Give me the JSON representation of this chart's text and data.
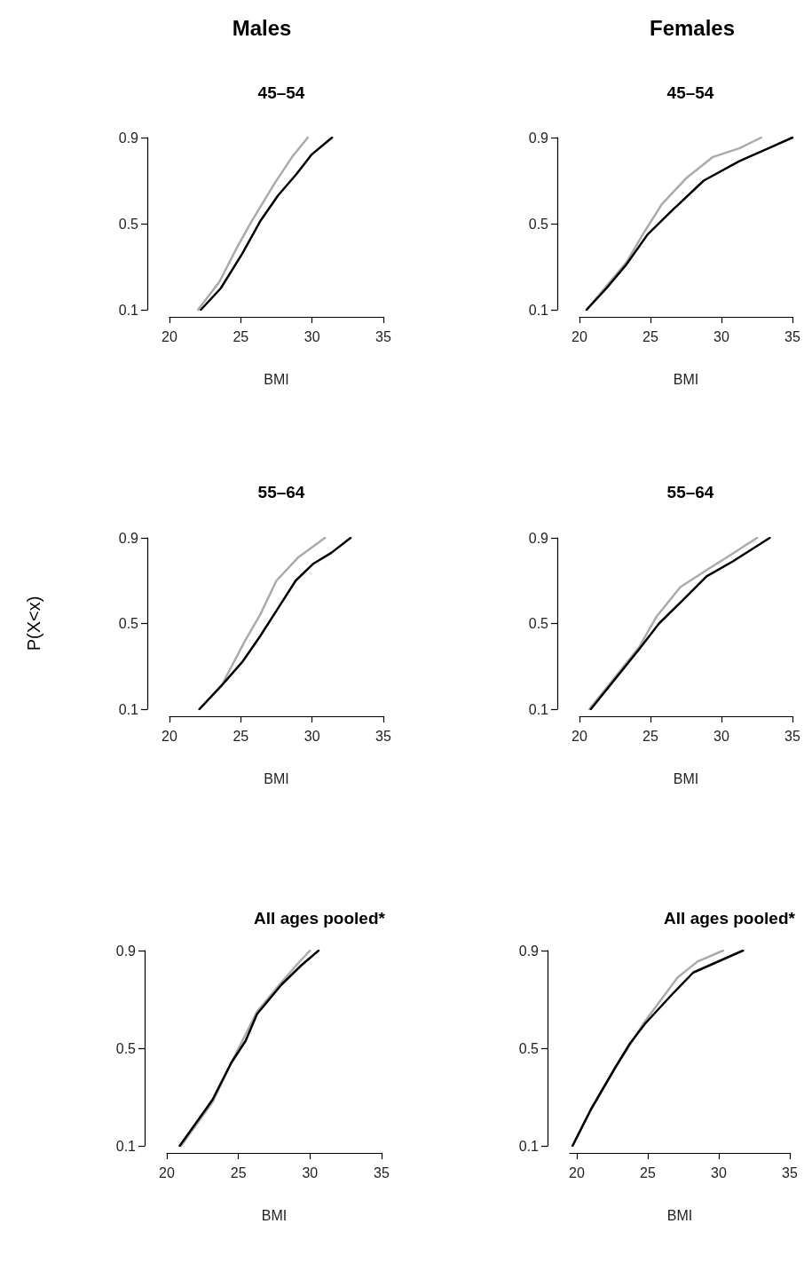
{
  "chart_data": [
    {
      "type": "line",
      "title": "45–54",
      "annotations": [
        "Males"
      ],
      "xlabel": "BMI",
      "xlim": [
        20,
        35
      ],
      "xticks": [
        20,
        25,
        30,
        35
      ],
      "ylim": [
        0.1,
        0.9
      ],
      "yticks": [
        0.1,
        0.5,
        0.9
      ],
      "series": [
        {
          "color": "#aaaaaa",
          "x": [
            22.0,
            23.5,
            24.7,
            25.75,
            27.4,
            28.6,
            29.7
          ],
          "values": [
            0.1,
            0.23,
            0.385,
            0.51,
            0.69,
            0.81,
            0.9
          ]
        },
        {
          "color": "#000000",
          "x": [
            22.2,
            23.6,
            25.1,
            26.35,
            27.6,
            28.9,
            29.95,
            31.4
          ],
          "values": [
            0.1,
            0.2,
            0.36,
            0.51,
            0.63,
            0.73,
            0.82,
            0.9
          ]
        }
      ]
    },
    {
      "type": "line",
      "title": "45–54",
      "annotations": [
        "Females"
      ],
      "xlabel": "BMI",
      "xlim": [
        20,
        35
      ],
      "xticks": [
        20,
        25,
        30,
        35
      ],
      "ylim": [
        0.1,
        0.9
      ],
      "yticks": [
        0.1,
        0.5,
        0.9
      ],
      "series": [
        {
          "color": "#aaaaaa",
          "x": [
            20.5,
            23.3,
            24.6,
            25.8,
            27.5,
            29.4,
            31.25,
            32.8
          ],
          "values": [
            0.1,
            0.32,
            0.465,
            0.59,
            0.71,
            0.81,
            0.85,
            0.9
          ]
        },
        {
          "color": "#000000",
          "x": [
            20.5,
            21.9,
            23.3,
            24.8,
            26.5,
            28.75,
            31.25,
            33.3,
            35.0
          ],
          "values": [
            0.1,
            0.2,
            0.31,
            0.45,
            0.56,
            0.7,
            0.79,
            0.85,
            0.9
          ]
        }
      ]
    },
    {
      "type": "line",
      "title": "55–64",
      "ylabel": "P(X<x)",
      "xlabel": "BMI",
      "xlim": [
        20,
        35
      ],
      "xticks": [
        20,
        25,
        30,
        35
      ],
      "ylim": [
        0.1,
        0.9
      ],
      "yticks": [
        0.1,
        0.5,
        0.9
      ],
      "series": [
        {
          "color": "#aaaaaa",
          "x": [
            22.1,
            23.65,
            25.3,
            26.35,
            27.5,
            29.05,
            30.9
          ],
          "values": [
            0.1,
            0.21,
            0.42,
            0.54,
            0.7,
            0.81,
            0.9
          ]
        },
        {
          "color": "#000000",
          "x": [
            22.1,
            23.65,
            25.1,
            26.35,
            27.6,
            28.85,
            30.1,
            31.35,
            32.7
          ],
          "values": [
            0.1,
            0.21,
            0.32,
            0.44,
            0.57,
            0.7,
            0.78,
            0.83,
            0.9
          ]
        }
      ]
    },
    {
      "type": "line",
      "title": "55–64",
      "xlabel": "BMI",
      "xlim": [
        20,
        35
      ],
      "xticks": [
        20,
        25,
        30,
        35
      ],
      "ylim": [
        0.1,
        0.9
      ],
      "yticks": [
        0.1,
        0.5,
        0.9
      ],
      "series": [
        {
          "color": "#aaaaaa",
          "x": [
            20.7,
            24.2,
            25.4,
            27.1,
            29.2,
            30.4,
            32.5
          ],
          "values": [
            0.1,
            0.39,
            0.53,
            0.67,
            0.76,
            0.81,
            0.9
          ]
        },
        {
          "color": "#000000",
          "x": [
            20.8,
            22.5,
            24.2,
            25.6,
            27.3,
            28.95,
            30.8,
            33.4
          ],
          "values": [
            0.1,
            0.24,
            0.38,
            0.5,
            0.61,
            0.72,
            0.79,
            0.9
          ]
        }
      ]
    },
    {
      "type": "line",
      "title": "All ages pooled*",
      "xlabel": "BMI",
      "xlim": [
        20,
        35
      ],
      "xticks": [
        20,
        25,
        30,
        35
      ],
      "ylim": [
        0.1,
        0.9
      ],
      "yticks": [
        0.1,
        0.5,
        0.9
      ],
      "series": [
        {
          "color": "#aaaaaa",
          "x": [
            21.0,
            23.2,
            24.5,
            26.3,
            28.0,
            29.2,
            30.0
          ],
          "values": [
            0.1,
            0.28,
            0.44,
            0.65,
            0.77,
            0.85,
            0.9
          ]
        },
        {
          "color": "#000000",
          "x": [
            20.9,
            22.6,
            23.2,
            24.5,
            25.5,
            26.3,
            28.0,
            29.4,
            30.6
          ],
          "values": [
            0.1,
            0.24,
            0.29,
            0.44,
            0.53,
            0.64,
            0.76,
            0.84,
            0.9
          ]
        }
      ]
    },
    {
      "type": "line",
      "title": "All ages pooled*",
      "xlabel": "BMI",
      "xlim": [
        19.5,
        35
      ],
      "xticks": [
        20,
        25,
        30,
        35
      ],
      "ylim": [
        0.1,
        0.9
      ],
      "yticks": [
        0.1,
        0.5,
        0.9
      ],
      "series": [
        {
          "color": "#aaaaaa",
          "x": [
            19.7,
            21.0,
            22.7,
            24.8,
            27.1,
            28.5,
            30.3
          ],
          "values": [
            0.1,
            0.25,
            0.42,
            0.61,
            0.79,
            0.855,
            0.9
          ]
        },
        {
          "color": "#000000",
          "x": [
            19.7,
            21.0,
            22.7,
            23.75,
            24.8,
            26.7,
            28.2,
            31.7
          ],
          "values": [
            0.1,
            0.25,
            0.42,
            0.52,
            0.6,
            0.72,
            0.81,
            0.9
          ]
        }
      ]
    }
  ]
}
